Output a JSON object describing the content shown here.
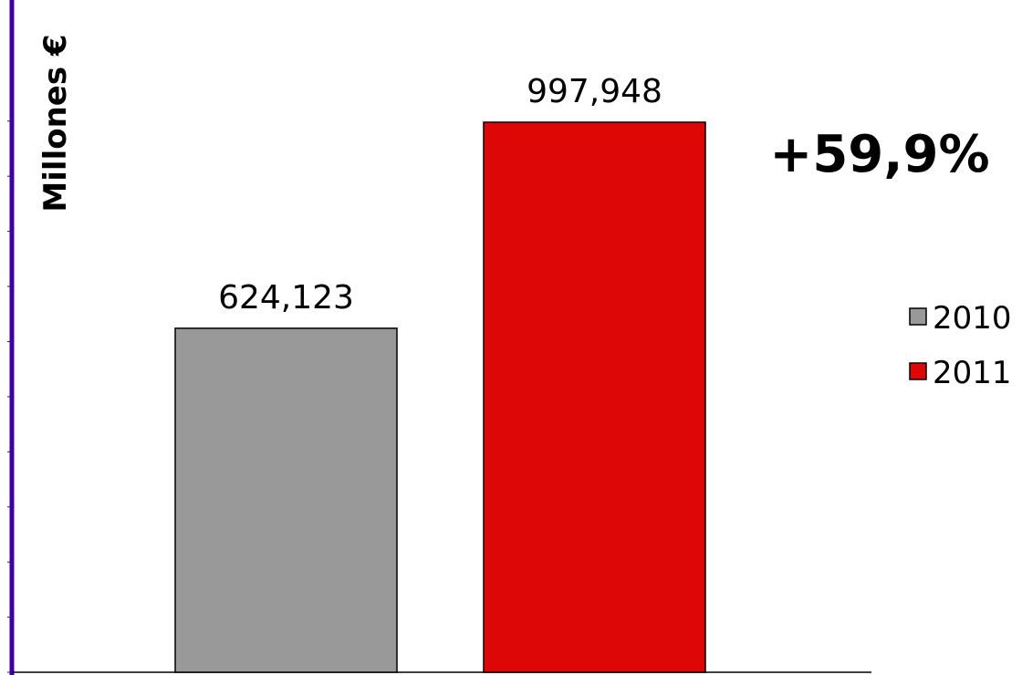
{
  "chart_data": {
    "type": "bar",
    "title": "",
    "xlabel": "",
    "ylabel": "Millones €",
    "categories": [
      "2010",
      "2011"
    ],
    "values": [
      624.123,
      997.948
    ],
    "value_labels": [
      "624,123",
      "997,948"
    ],
    "ylim": [
      0,
      1000
    ],
    "legend": {
      "placement": "right",
      "entries": [
        {
          "label": "2010",
          "color": "#999999"
        },
        {
          "label": "2011",
          "color": "#dd0707"
        }
      ]
    },
    "annotations": [
      {
        "text": "+59,9%"
      }
    ],
    "grid": false,
    "axis_color": "#3f00a0"
  }
}
